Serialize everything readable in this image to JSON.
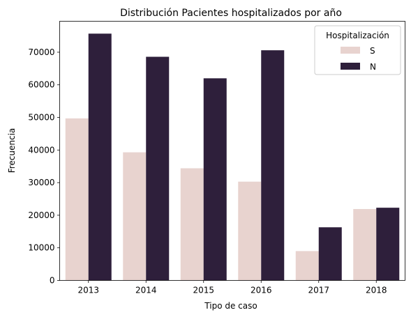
{
  "chart_data": {
    "type": "bar",
    "title": "Distribución Pacientes hospitalizados por año",
    "xlabel": "Tipo de caso",
    "ylabel": "Frecuencia",
    "categories": [
      "2013",
      "2014",
      "2015",
      "2016",
      "2017",
      "2018"
    ],
    "series": [
      {
        "name": "S",
        "color": "#e8d3cf",
        "values": [
          49700,
          39300,
          34400,
          30300,
          9000,
          21900
        ]
      },
      {
        "name": "N",
        "color": "#2e1f3b",
        "values": [
          75700,
          68600,
          62000,
          70600,
          16300,
          22300
        ]
      }
    ],
    "ylim": [
      0,
      79500
    ],
    "yticks": [
      0,
      10000,
      20000,
      30000,
      40000,
      50000,
      60000,
      70000
    ],
    "grid": false,
    "legend": {
      "title": "Hospitalización",
      "placement": "top-right"
    }
  }
}
